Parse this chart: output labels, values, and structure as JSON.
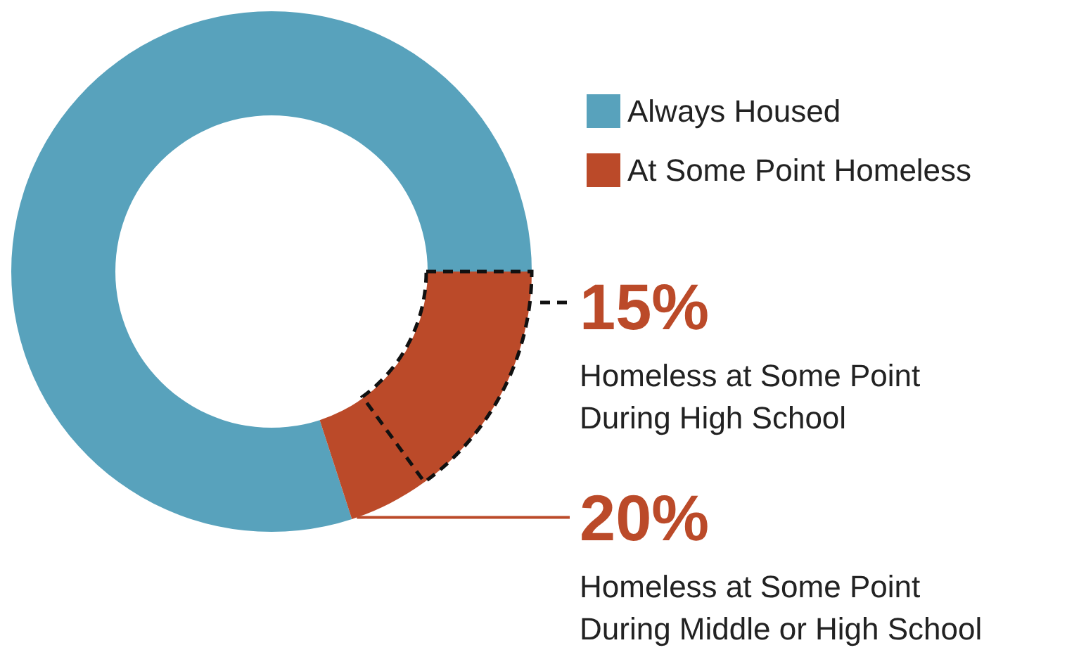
{
  "chart_data": {
    "type": "donut",
    "categories": [
      "Always Housed",
      "At Some Point Homeless"
    ],
    "values": [
      80,
      20
    ],
    "colors": [
      "#58a2bc",
      "#bb4a29"
    ],
    "legend": "top right",
    "annotations": [
      "15%",
      "Homeless at Some Point During High School",
      "20%",
      "Homeless at Some Point During Middle or High School"
    ]
  }
}
